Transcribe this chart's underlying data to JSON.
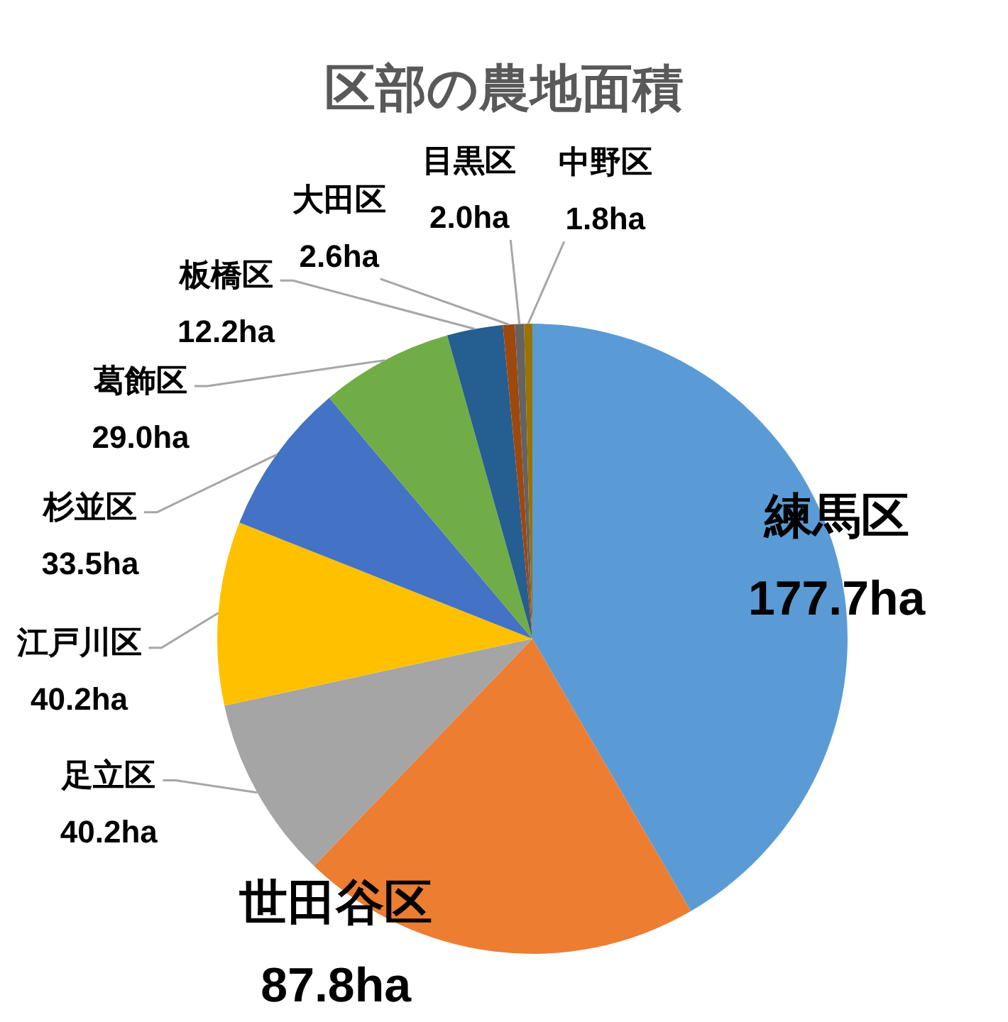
{
  "chart_data": {
    "type": "pie",
    "title": "区部の農地面積",
    "categories": [
      "練馬区",
      "世田谷区",
      "足立区",
      "江戸川区",
      "杉並区",
      "葛飾区",
      "板橋区",
      "大田区",
      "目黒区",
      "中野区"
    ],
    "values": [
      177.7,
      87.8,
      40.2,
      40.2,
      33.5,
      29.0,
      12.2,
      2.6,
      2.0,
      1.8
    ],
    "colors": [
      "#5b9bd5",
      "#ed7d31",
      "#a5a5a5",
      "#ffc000",
      "#4472c4",
      "#70ad47",
      "#255e91",
      "#9e480e",
      "#636363",
      "#997300"
    ],
    "value_labels": [
      "177.7ha",
      "87.8ha",
      "40.2ha",
      "40.2ha",
      "33.5ha",
      "29.0ha",
      "12.2ha",
      "2.6ha",
      "2.0ha",
      "1.8ha"
    ]
  }
}
